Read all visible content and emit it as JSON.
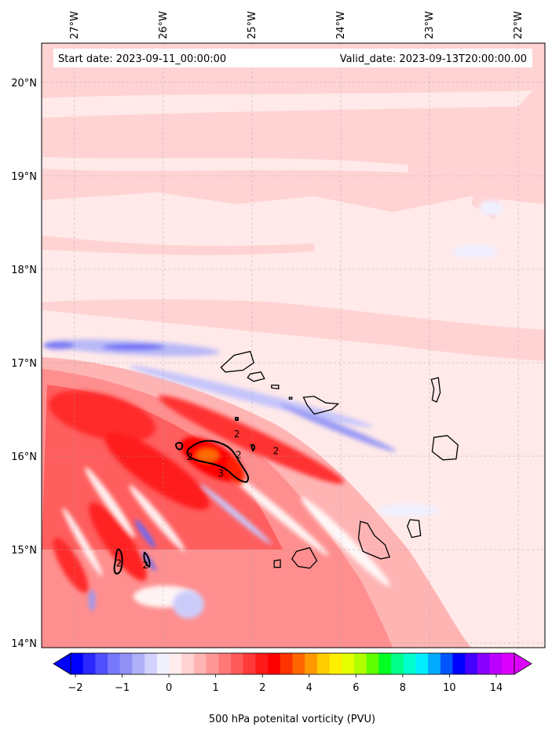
{
  "header": {
    "start_date": "Start date: 2023-09-11_00:00:00",
    "valid_date": "Valid_date: 2023-09-13T20:00:00.00"
  },
  "map": {
    "lon_range": [
      -27.37,
      -21.7
    ],
    "lat_range": [
      13.95,
      20.42
    ],
    "lon_ticks": [
      {
        "value": -27,
        "label": "27°W"
      },
      {
        "value": -26,
        "label": "26°W"
      },
      {
        "value": -25,
        "label": "25°W"
      },
      {
        "value": -24,
        "label": "24°W"
      },
      {
        "value": -23,
        "label": "23°W"
      },
      {
        "value": -22,
        "label": "22°W"
      }
    ],
    "lat_ticks": [
      {
        "value": 20,
        "label": "20°N"
      },
      {
        "value": 19,
        "label": "19°N"
      },
      {
        "value": 18,
        "label": "18°N"
      },
      {
        "value": 17,
        "label": "17°N"
      },
      {
        "value": 16,
        "label": "16°N"
      },
      {
        "value": 15,
        "label": "15°N"
      },
      {
        "value": 14,
        "label": "14°N"
      }
    ],
    "gridlines": true,
    "contour_labels": [
      {
        "lon": -25.7,
        "lat": 15.96,
        "text": "2"
      },
      {
        "lon": -25.17,
        "lat": 16.2,
        "text": "2"
      },
      {
        "lon": -25.15,
        "lat": 15.98,
        "text": "2"
      },
      {
        "lon": -25.35,
        "lat": 15.78,
        "text": "3"
      },
      {
        "lon": -24.73,
        "lat": 16.02,
        "text": "2"
      },
      {
        "lon": -26.5,
        "lat": 14.82,
        "text": "2"
      },
      {
        "lon": -26.2,
        "lat": 14.8,
        "text": "2"
      }
    ],
    "islands": [
      {
        "name": "Santo Antao",
        "points": [
          [
            -25.35,
            16.95
          ],
          [
            -25.2,
            17.08
          ],
          [
            -25.02,
            17.12
          ],
          [
            -24.98,
            17.0
          ],
          [
            -25.1,
            16.92
          ],
          [
            -25.3,
            16.9
          ]
        ]
      },
      {
        "name": "Sao Vicente",
        "points": [
          [
            -25.02,
            16.88
          ],
          [
            -24.9,
            16.9
          ],
          [
            -24.86,
            16.83
          ],
          [
            -24.98,
            16.8
          ],
          [
            -25.05,
            16.84
          ]
        ]
      },
      {
        "name": "Santa Luzia",
        "points": [
          [
            -24.78,
            16.76
          ],
          [
            -24.7,
            16.76
          ],
          [
            -24.7,
            16.72
          ],
          [
            -24.78,
            16.73
          ]
        ]
      },
      {
        "name": "Sao Nicolau",
        "points": [
          [
            -24.42,
            16.63
          ],
          [
            -24.3,
            16.64
          ],
          [
            -24.17,
            16.57
          ],
          [
            -24.03,
            16.56
          ],
          [
            -24.1,
            16.5
          ],
          [
            -24.3,
            16.45
          ],
          [
            -24.38,
            16.55
          ]
        ]
      },
      {
        "name": "Branco",
        "points": [
          [
            -24.58,
            16.63
          ],
          [
            -24.55,
            16.63
          ],
          [
            -24.55,
            16.61
          ],
          [
            -24.58,
            16.61
          ]
        ]
      },
      {
        "name": "Sal",
        "points": [
          [
            -22.98,
            16.82
          ],
          [
            -22.9,
            16.84
          ],
          [
            -22.88,
            16.68
          ],
          [
            -22.92,
            16.58
          ],
          [
            -22.97,
            16.6
          ],
          [
            -22.95,
            16.72
          ]
        ]
      },
      {
        "name": "Boa Vista",
        "points": [
          [
            -22.95,
            16.2
          ],
          [
            -22.8,
            16.22
          ],
          [
            -22.68,
            16.12
          ],
          [
            -22.7,
            15.97
          ],
          [
            -22.85,
            15.96
          ],
          [
            -22.97,
            16.05
          ]
        ]
      },
      {
        "name": "Maio",
        "points": [
          [
            -23.22,
            15.32
          ],
          [
            -23.12,
            15.31
          ],
          [
            -23.1,
            15.15
          ],
          [
            -23.2,
            15.13
          ],
          [
            -23.25,
            15.25
          ]
        ]
      },
      {
        "name": "Santiago",
        "points": [
          [
            -23.78,
            15.3
          ],
          [
            -23.7,
            15.28
          ],
          [
            -23.62,
            15.15
          ],
          [
            -23.5,
            15.05
          ],
          [
            -23.45,
            14.92
          ],
          [
            -23.55,
            14.9
          ],
          [
            -23.75,
            14.98
          ],
          [
            -23.8,
            15.12
          ]
        ]
      },
      {
        "name": "Fogo",
        "points": [
          [
            -24.5,
            14.98
          ],
          [
            -24.35,
            15.02
          ],
          [
            -24.27,
            14.88
          ],
          [
            -24.35,
            14.8
          ],
          [
            -24.48,
            14.82
          ],
          [
            -24.55,
            14.9
          ]
        ]
      },
      {
        "name": "Brava",
        "points": [
          [
            -24.75,
            14.88
          ],
          [
            -24.68,
            14.89
          ],
          [
            -24.68,
            14.81
          ],
          [
            -24.75,
            14.81
          ]
        ]
      }
    ]
  },
  "colorbar": {
    "label": "500 hPa potenital vorticity (PVU)",
    "tick_labels": [
      "−2",
      "−1",
      "0",
      "1",
      "2",
      "4",
      "6",
      "8",
      "10",
      "14"
    ],
    "colors": [
      "#0000ff",
      "#2828ff",
      "#5050ff",
      "#7878ff",
      "#9090f5",
      "#b0b0f8",
      "#d2d2fc",
      "#f2f2ff",
      "#ffecec",
      "#ffd2d2",
      "#ffb4b4",
      "#ff9696",
      "#ff7878",
      "#ff5a5a",
      "#ff3a3a",
      "#ff1a1a",
      "#ff0000",
      "#ff3300",
      "#ff6600",
      "#ff9900",
      "#ffcc00",
      "#ffee00",
      "#e4ff00",
      "#b0ff00",
      "#60ff00",
      "#00ff22",
      "#00ff88",
      "#00ffcc",
      "#00eeff",
      "#00aaff",
      "#0055ff",
      "#0000ff",
      "#4400ff",
      "#8800ff",
      "#bb00ff",
      "#dd00ff"
    ],
    "extend": "both"
  }
}
